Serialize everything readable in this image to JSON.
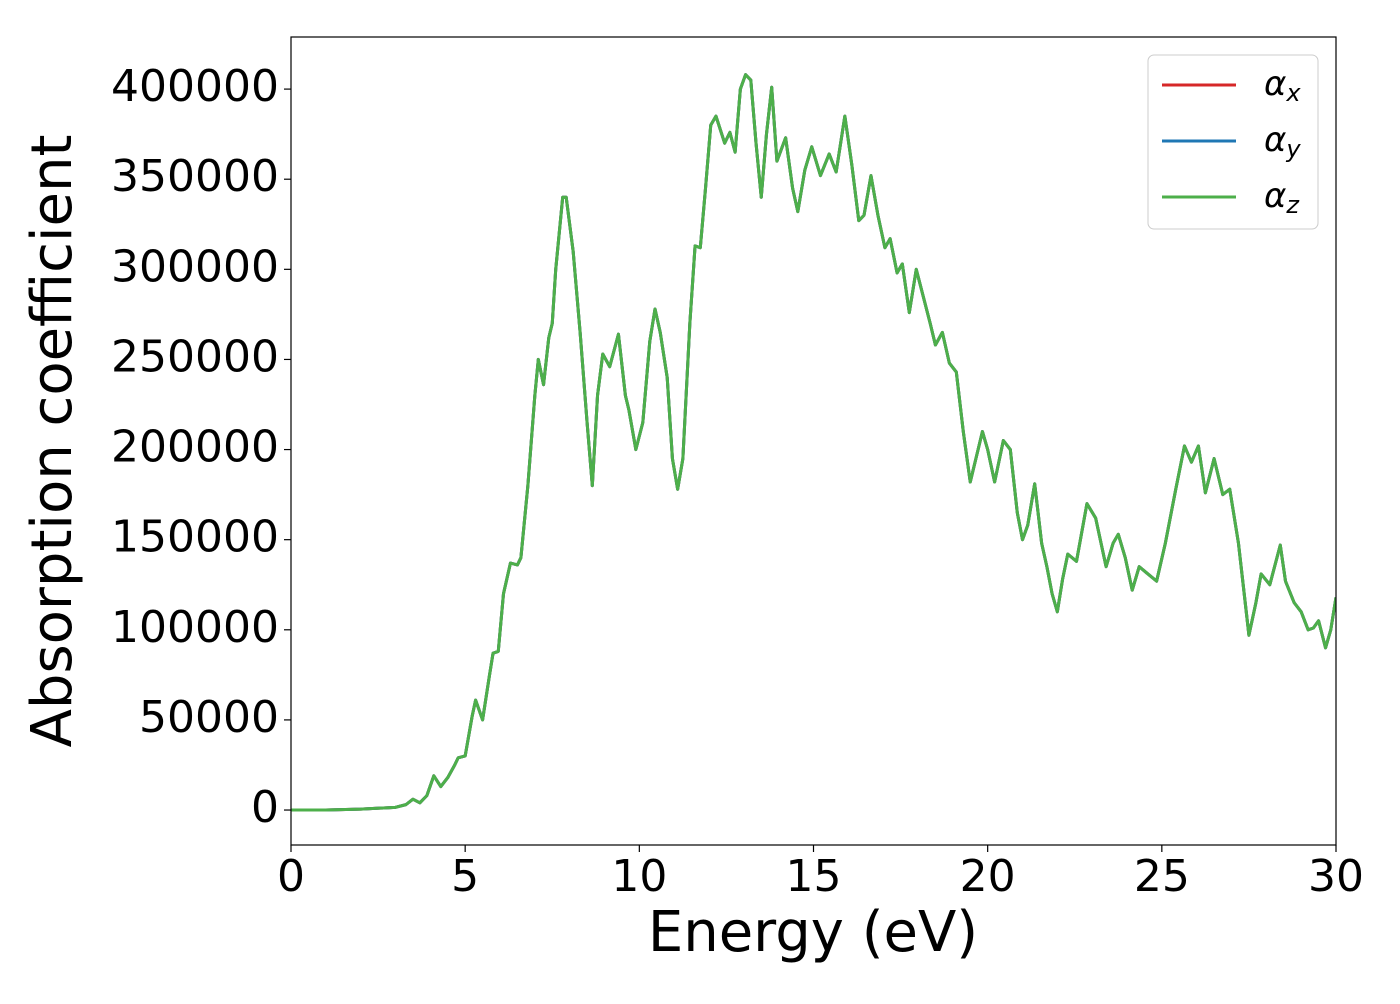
{
  "chart_data": {
    "type": "line",
    "xlabel": "Energy (eV)",
    "ylabel": "Absorption coefficient",
    "x": [
      0,
      1,
      2,
      3,
      3.3,
      3.5,
      3.7,
      3.9,
      4.1,
      4.3,
      4.5,
      4.7,
      4.8,
      5.0,
      5.2,
      5.3,
      5.5,
      5.7,
      5.8,
      5.95,
      6.1,
      6.3,
      6.5,
      6.6,
      6.8,
      7.0,
      7.1,
      7.25,
      7.4,
      7.5,
      7.6,
      7.8,
      7.9,
      8.1,
      8.3,
      8.5,
      8.65,
      8.8,
      8.95,
      9.15,
      9.4,
      9.6,
      9.7,
      9.9,
      10.1,
      10.3,
      10.45,
      10.6,
      10.8,
      10.95,
      11.1,
      11.25,
      11.45,
      11.6,
      11.75,
      11.9,
      12.05,
      12.2,
      12.45,
      12.6,
      12.75,
      12.9,
      13.05,
      13.2,
      13.35,
      13.5,
      13.65,
      13.8,
      13.95,
      14.2,
      14.4,
      14.55,
      14.75,
      14.95,
      15.2,
      15.45,
      15.65,
      15.9,
      16.1,
      16.3,
      16.45,
      16.65,
      16.85,
      17.05,
      17.2,
      17.4,
      17.55,
      17.75,
      17.95,
      18.15,
      18.35,
      18.5,
      18.7,
      18.9,
      19.1,
      19.3,
      19.5,
      19.7,
      19.85,
      20.0,
      20.2,
      20.45,
      20.65,
      20.85,
      21.0,
      21.15,
      21.35,
      21.55,
      21.7,
      21.85,
      22.0,
      22.15,
      22.3,
      22.55,
      22.85,
      23.1,
      23.4,
      23.6,
      23.75,
      23.95,
      24.15,
      24.35,
      24.6,
      24.85,
      25.1,
      25.4,
      25.65,
      25.85,
      26.05,
      26.25,
      26.5,
      26.75,
      26.95,
      27.2,
      27.5,
      27.7,
      27.85,
      28.1,
      28.4,
      28.55,
      28.8,
      29.0,
      29.2,
      29.35,
      29.5,
      29.7,
      29.85,
      30.0
    ],
    "series": [
      {
        "name": "αx",
        "color": "#d62728",
        "values": [
          0,
          0,
          500,
          1500,
          3000,
          6000,
          4000,
          8000,
          19000,
          13000,
          18000,
          25000,
          29000,
          30000,
          52000,
          61000,
          50000,
          75000,
          87000,
          88000,
          120000,
          137000,
          136000,
          140000,
          180000,
          230000,
          250000,
          236000,
          262000,
          270000,
          300000,
          340000,
          340000,
          310000,
          265000,
          215000,
          180000,
          230000,
          253000,
          246000,
          264000,
          230000,
          222000,
          200000,
          215000,
          260000,
          278000,
          265000,
          240000,
          195000,
          178000,
          195000,
          270000,
          313000,
          312000,
          345000,
          380000,
          385000,
          370000,
          376000,
          365000,
          400000,
          408000,
          405000,
          370000,
          340000,
          375000,
          401000,
          360000,
          373000,
          345000,
          332000,
          355000,
          368000,
          352000,
          364000,
          354000,
          385000,
          358000,
          327000,
          330000,
          352000,
          330000,
          312000,
          317000,
          298000,
          303000,
          276000,
          300000,
          285000,
          270000,
          258000,
          265000,
          248000,
          243000,
          210000,
          182000,
          198000,
          210000,
          200000,
          182000,
          205000,
          200000,
          165000,
          150000,
          158000,
          181000,
          148000,
          135000,
          120000,
          110000,
          128000,
          142000,
          138000,
          170000,
          162000,
          135000,
          148000,
          153000,
          140000,
          122000,
          135000,
          131000,
          127000,
          148000,
          178000,
          202000,
          193000,
          202000,
          176000,
          195000,
          175000,
          178000,
          148000,
          97000,
          115000,
          131000,
          125000,
          147000,
          127000,
          115000,
          110000,
          100000,
          101000,
          105000,
          90000,
          100000,
          118000
        ]
      },
      {
        "name": "αy",
        "color": "#1f77b4",
        "values": [
          0,
          0,
          500,
          1500,
          3000,
          6000,
          4000,
          8000,
          19000,
          13000,
          18000,
          25000,
          29000,
          30000,
          52000,
          61000,
          50000,
          75000,
          87000,
          88000,
          120000,
          137000,
          136000,
          140000,
          180000,
          230000,
          250000,
          236000,
          262000,
          270000,
          300000,
          340000,
          340000,
          310000,
          265000,
          215000,
          180000,
          230000,
          253000,
          246000,
          264000,
          230000,
          222000,
          200000,
          215000,
          260000,
          278000,
          265000,
          240000,
          195000,
          178000,
          195000,
          270000,
          313000,
          312000,
          345000,
          380000,
          385000,
          370000,
          376000,
          365000,
          400000,
          408000,
          405000,
          370000,
          340000,
          375000,
          401000,
          360000,
          373000,
          345000,
          332000,
          355000,
          368000,
          352000,
          364000,
          354000,
          385000,
          358000,
          327000,
          330000,
          352000,
          330000,
          312000,
          317000,
          298000,
          303000,
          276000,
          300000,
          285000,
          270000,
          258000,
          265000,
          248000,
          243000,
          210000,
          182000,
          198000,
          210000,
          200000,
          182000,
          205000,
          200000,
          165000,
          150000,
          158000,
          181000,
          148000,
          135000,
          120000,
          110000,
          128000,
          142000,
          138000,
          170000,
          162000,
          135000,
          148000,
          153000,
          140000,
          122000,
          135000,
          131000,
          127000,
          148000,
          178000,
          202000,
          193000,
          202000,
          176000,
          195000,
          175000,
          178000,
          148000,
          97000,
          115000,
          131000,
          125000,
          147000,
          127000,
          115000,
          110000,
          100000,
          101000,
          105000,
          90000,
          100000,
          118000
        ]
      },
      {
        "name": "αz",
        "color": "#4daf4a",
        "values": [
          0,
          0,
          500,
          1500,
          3000,
          6000,
          4000,
          8000,
          19000,
          13000,
          18000,
          25000,
          29000,
          30000,
          52000,
          61000,
          50000,
          75000,
          87000,
          88000,
          120000,
          137000,
          136000,
          140000,
          180000,
          230000,
          250000,
          236000,
          262000,
          270000,
          300000,
          340000,
          340000,
          310000,
          265000,
          215000,
          180000,
          230000,
          253000,
          246000,
          264000,
          230000,
          222000,
          200000,
          215000,
          260000,
          278000,
          265000,
          240000,
          195000,
          178000,
          195000,
          270000,
          313000,
          312000,
          345000,
          380000,
          385000,
          370000,
          376000,
          365000,
          400000,
          408000,
          405000,
          370000,
          340000,
          375000,
          401000,
          360000,
          373000,
          345000,
          332000,
          355000,
          368000,
          352000,
          364000,
          354000,
          385000,
          358000,
          327000,
          330000,
          352000,
          330000,
          312000,
          317000,
          298000,
          303000,
          276000,
          300000,
          285000,
          270000,
          258000,
          265000,
          248000,
          243000,
          210000,
          182000,
          198000,
          210000,
          200000,
          182000,
          205000,
          200000,
          165000,
          150000,
          158000,
          181000,
          148000,
          135000,
          120000,
          110000,
          128000,
          142000,
          138000,
          170000,
          162000,
          135000,
          148000,
          153000,
          140000,
          122000,
          135000,
          131000,
          127000,
          148000,
          178000,
          202000,
          193000,
          202000,
          176000,
          195000,
          175000,
          178000,
          148000,
          97000,
          115000,
          131000,
          125000,
          147000,
          127000,
          115000,
          110000,
          100000,
          101000,
          105000,
          90000,
          100000,
          118000
        ]
      }
    ],
    "xlim": [
      0,
      30
    ],
    "xticks": [
      0,
      5,
      10,
      15,
      20,
      25,
      30
    ],
    "ylim": [
      -19400,
      428900
    ],
    "yticks": [
      0,
      50000,
      100000,
      150000,
      200000,
      250000,
      300000,
      350000,
      400000
    ],
    "legend": "upper right",
    "grid": false
  }
}
